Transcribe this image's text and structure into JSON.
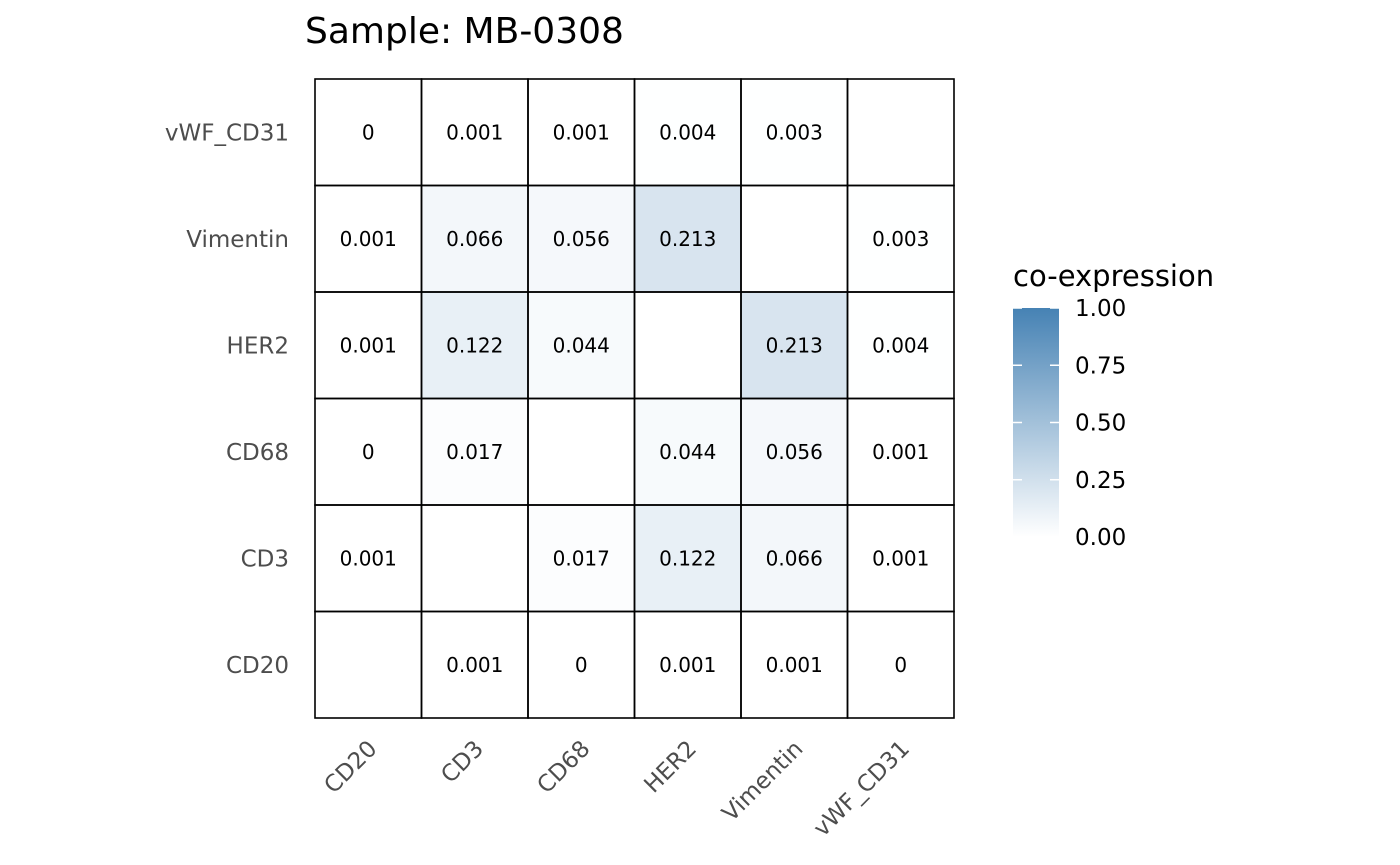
{
  "chart_data": {
    "type": "heatmap",
    "title": "Sample: MB-0308",
    "x_categories": [
      "CD20",
      "CD3",
      "CD68",
      "HER2",
      "Vimentin",
      "vWF_CD31"
    ],
    "y_categories": [
      "CD20",
      "CD3",
      "CD68",
      "HER2",
      "Vimentin",
      "vWF_CD31"
    ],
    "cells": [
      {
        "x": "CD3",
        "y": "CD20",
        "value": 0.001,
        "label": "0.001"
      },
      {
        "x": "CD68",
        "y": "CD20",
        "value": 0,
        "label": "0"
      },
      {
        "x": "HER2",
        "y": "CD20",
        "value": 0.001,
        "label": "0.001"
      },
      {
        "x": "Vimentin",
        "y": "CD20",
        "value": 0.001,
        "label": "0.001"
      },
      {
        "x": "vWF_CD31",
        "y": "CD20",
        "value": 0,
        "label": "0"
      },
      {
        "x": "CD20",
        "y": "CD3",
        "value": 0.001,
        "label": "0.001"
      },
      {
        "x": "CD68",
        "y": "CD3",
        "value": 0.017,
        "label": "0.017"
      },
      {
        "x": "HER2",
        "y": "CD3",
        "value": 0.122,
        "label": "0.122"
      },
      {
        "x": "Vimentin",
        "y": "CD3",
        "value": 0.066,
        "label": "0.066"
      },
      {
        "x": "vWF_CD31",
        "y": "CD3",
        "value": 0.001,
        "label": "0.001"
      },
      {
        "x": "CD20",
        "y": "CD68",
        "value": 0,
        "label": "0"
      },
      {
        "x": "CD3",
        "y": "CD68",
        "value": 0.017,
        "label": "0.017"
      },
      {
        "x": "HER2",
        "y": "CD68",
        "value": 0.044,
        "label": "0.044"
      },
      {
        "x": "Vimentin",
        "y": "CD68",
        "value": 0.056,
        "label": "0.056"
      },
      {
        "x": "vWF_CD31",
        "y": "CD68",
        "value": 0.001,
        "label": "0.001"
      },
      {
        "x": "CD20",
        "y": "HER2",
        "value": 0.001,
        "label": "0.001"
      },
      {
        "x": "CD3",
        "y": "HER2",
        "value": 0.122,
        "label": "0.122"
      },
      {
        "x": "CD68",
        "y": "HER2",
        "value": 0.044,
        "label": "0.044"
      },
      {
        "x": "Vimentin",
        "y": "HER2",
        "value": 0.213,
        "label": "0.213"
      },
      {
        "x": "vWF_CD31",
        "y": "HER2",
        "value": 0.004,
        "label": "0.004"
      },
      {
        "x": "CD20",
        "y": "Vimentin",
        "value": 0.001,
        "label": "0.001"
      },
      {
        "x": "CD3",
        "y": "Vimentin",
        "value": 0.066,
        "label": "0.066"
      },
      {
        "x": "CD68",
        "y": "Vimentin",
        "value": 0.056,
        "label": "0.056"
      },
      {
        "x": "HER2",
        "y": "Vimentin",
        "value": 0.213,
        "label": "0.213"
      },
      {
        "x": "vWF_CD31",
        "y": "Vimentin",
        "value": 0.003,
        "label": "0.003"
      },
      {
        "x": "CD20",
        "y": "vWF_CD31",
        "value": 0,
        "label": "0"
      },
      {
        "x": "CD3",
        "y": "vWF_CD31",
        "value": 0.001,
        "label": "0.001"
      },
      {
        "x": "CD68",
        "y": "vWF_CD31",
        "value": 0.001,
        "label": "0.001"
      },
      {
        "x": "HER2",
        "y": "vWF_CD31",
        "value": 0.004,
        "label": "0.004"
      },
      {
        "x": "Vimentin",
        "y": "vWF_CD31",
        "value": 0.003,
        "label": "0.003"
      }
    ],
    "legend": {
      "title": "co-expression",
      "range": [
        0,
        1
      ],
      "ticks": [
        1.0,
        0.75,
        0.5,
        0.25,
        0.0
      ],
      "tick_labels": [
        "1.00",
        "0.75",
        "0.50",
        "0.25",
        "0.00"
      ],
      "low_color": "#ffffff",
      "high_color": "#4682b4",
      "placement": "right"
    },
    "colors": {
      "cell_border": "#000000",
      "axis_text": "#4d4d4d"
    }
  }
}
